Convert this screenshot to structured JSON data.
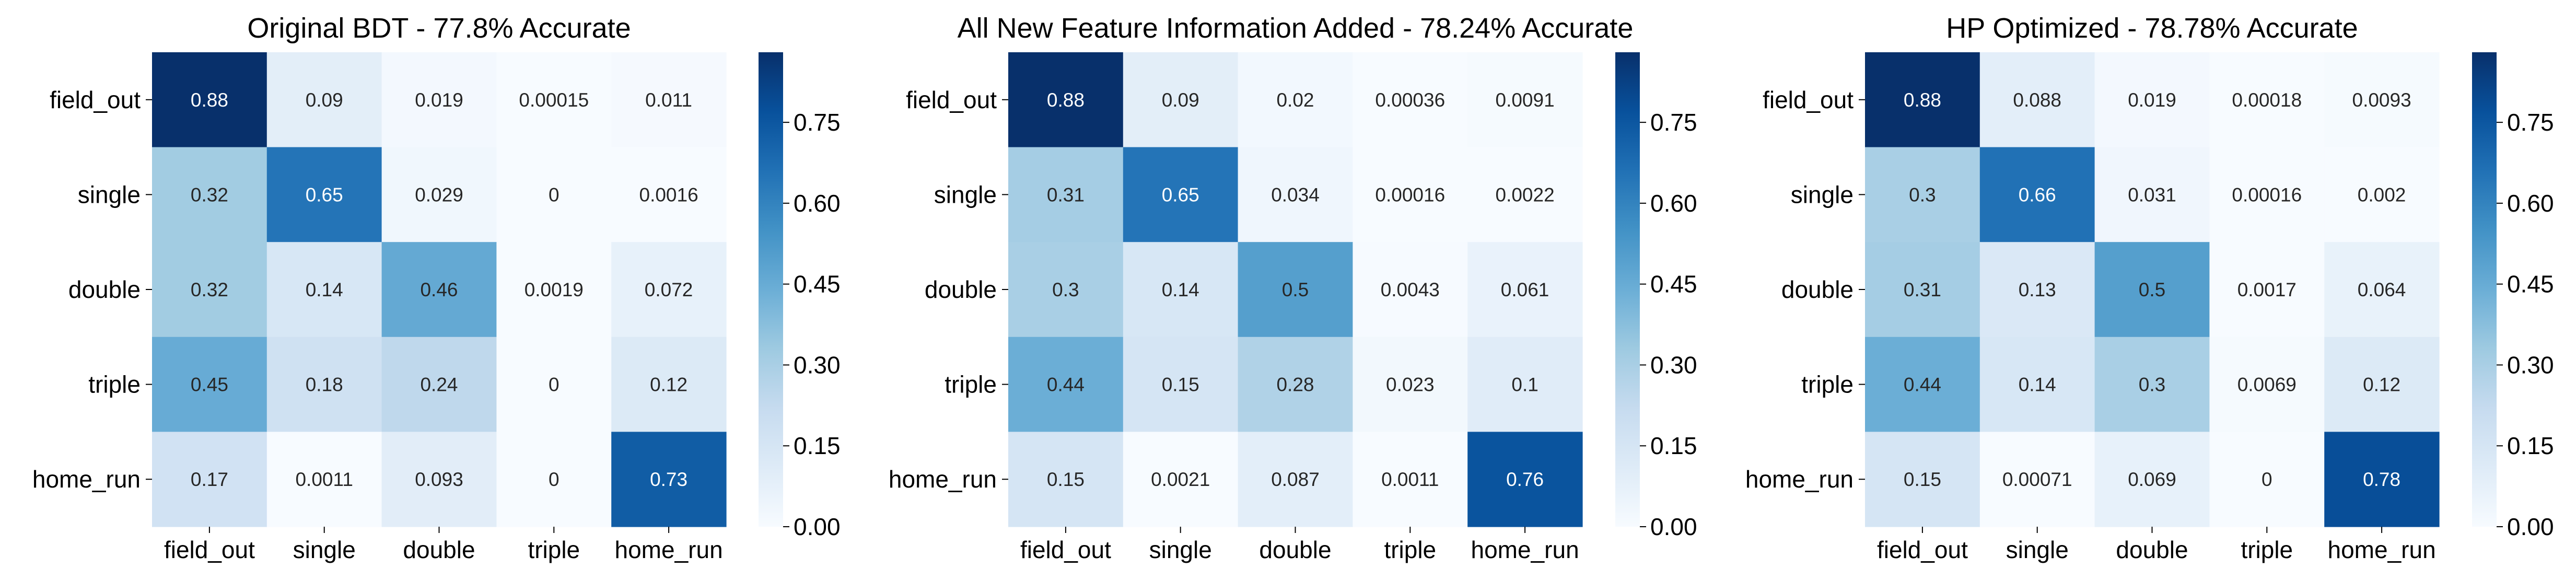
{
  "chart_data": [
    {
      "type": "heatmap",
      "title": "Original BDT - 77.8% Accurate",
      "rows": [
        "field_out",
        "single",
        "double",
        "triple",
        "home_run"
      ],
      "columns": [
        "field_out",
        "single",
        "double",
        "triple",
        "home_run"
      ],
      "values": [
        [
          0.88,
          0.09,
          0.019,
          0.00015,
          0.011
        ],
        [
          0.32,
          0.65,
          0.029,
          0,
          0.0016
        ],
        [
          0.32,
          0.14,
          0.46,
          0.0019,
          0.072
        ],
        [
          0.45,
          0.18,
          0.24,
          0,
          0.12
        ],
        [
          0.17,
          0.0011,
          0.093,
          0,
          0.73
        ]
      ],
      "labels": [
        [
          "0.88",
          "0.09",
          "0.019",
          "0.00015",
          "0.011"
        ],
        [
          "0.32",
          "0.65",
          "0.029",
          "0",
          "0.0016"
        ],
        [
          "0.32",
          "0.14",
          "0.46",
          "0.0019",
          "0.072"
        ],
        [
          "0.45",
          "0.18",
          "0.24",
          "0",
          "0.12"
        ],
        [
          "0.17",
          "0.0011",
          "0.093",
          "0",
          "0.73"
        ]
      ],
      "colorbar": {
        "min": 0,
        "max": 0.88,
        "ticks": [
          "0.00",
          "0.15",
          "0.30",
          "0.45",
          "0.60",
          "0.75"
        ]
      },
      "colormap": "Blues"
    },
    {
      "type": "heatmap",
      "title": "All New Feature Information Added - 78.24% Accurate",
      "rows": [
        "field_out",
        "single",
        "double",
        "triple",
        "home_run"
      ],
      "columns": [
        "field_out",
        "single",
        "double",
        "triple",
        "home_run"
      ],
      "values": [
        [
          0.88,
          0.09,
          0.02,
          0.00036,
          0.0091
        ],
        [
          0.31,
          0.65,
          0.034,
          0.00016,
          0.0022
        ],
        [
          0.3,
          0.14,
          0.5,
          0.0043,
          0.061
        ],
        [
          0.44,
          0.15,
          0.28,
          0.023,
          0.1
        ],
        [
          0.15,
          0.0021,
          0.087,
          0.0011,
          0.76
        ]
      ],
      "labels": [
        [
          "0.88",
          "0.09",
          "0.02",
          "0.00036",
          "0.0091"
        ],
        [
          "0.31",
          "0.65",
          "0.034",
          "0.00016",
          "0.0022"
        ],
        [
          "0.3",
          "0.14",
          "0.5",
          "0.0043",
          "0.061"
        ],
        [
          "0.44",
          "0.15",
          "0.28",
          "0.023",
          "0.1"
        ],
        [
          "0.15",
          "0.0021",
          "0.087",
          "0.0011",
          "0.76"
        ]
      ],
      "colorbar": {
        "min": 0,
        "max": 0.88,
        "ticks": [
          "0.00",
          "0.15",
          "0.30",
          "0.45",
          "0.60",
          "0.75"
        ]
      },
      "colormap": "Blues"
    },
    {
      "type": "heatmap",
      "title": "HP Optimized - 78.78% Accurate",
      "rows": [
        "field_out",
        "single",
        "double",
        "triple",
        "home_run"
      ],
      "columns": [
        "field_out",
        "single",
        "double",
        "triple",
        "home_run"
      ],
      "values": [
        [
          0.88,
          0.088,
          0.019,
          0.00018,
          0.0093
        ],
        [
          0.3,
          0.66,
          0.031,
          0.00016,
          0.002
        ],
        [
          0.31,
          0.13,
          0.5,
          0.0017,
          0.064
        ],
        [
          0.44,
          0.14,
          0.3,
          0.0069,
          0.12
        ],
        [
          0.15,
          0.00071,
          0.069,
          0,
          0.78
        ]
      ],
      "labels": [
        [
          "0.88",
          "0.088",
          "0.019",
          "0.00018",
          "0.0093"
        ],
        [
          "0.3",
          "0.66",
          "0.031",
          "0.00016",
          "0.002"
        ],
        [
          "0.31",
          "0.13",
          "0.5",
          "0.0017",
          "0.064"
        ],
        [
          "0.44",
          "0.14",
          "0.3",
          "0.0069",
          "0.12"
        ],
        [
          "0.15",
          "0.00071",
          "0.069",
          "0",
          "0.78"
        ]
      ],
      "colorbar": {
        "min": 0,
        "max": 0.88,
        "ticks": [
          "0.00",
          "0.15",
          "0.30",
          "0.45",
          "0.60",
          "0.75"
        ]
      },
      "colormap": "Blues"
    }
  ]
}
